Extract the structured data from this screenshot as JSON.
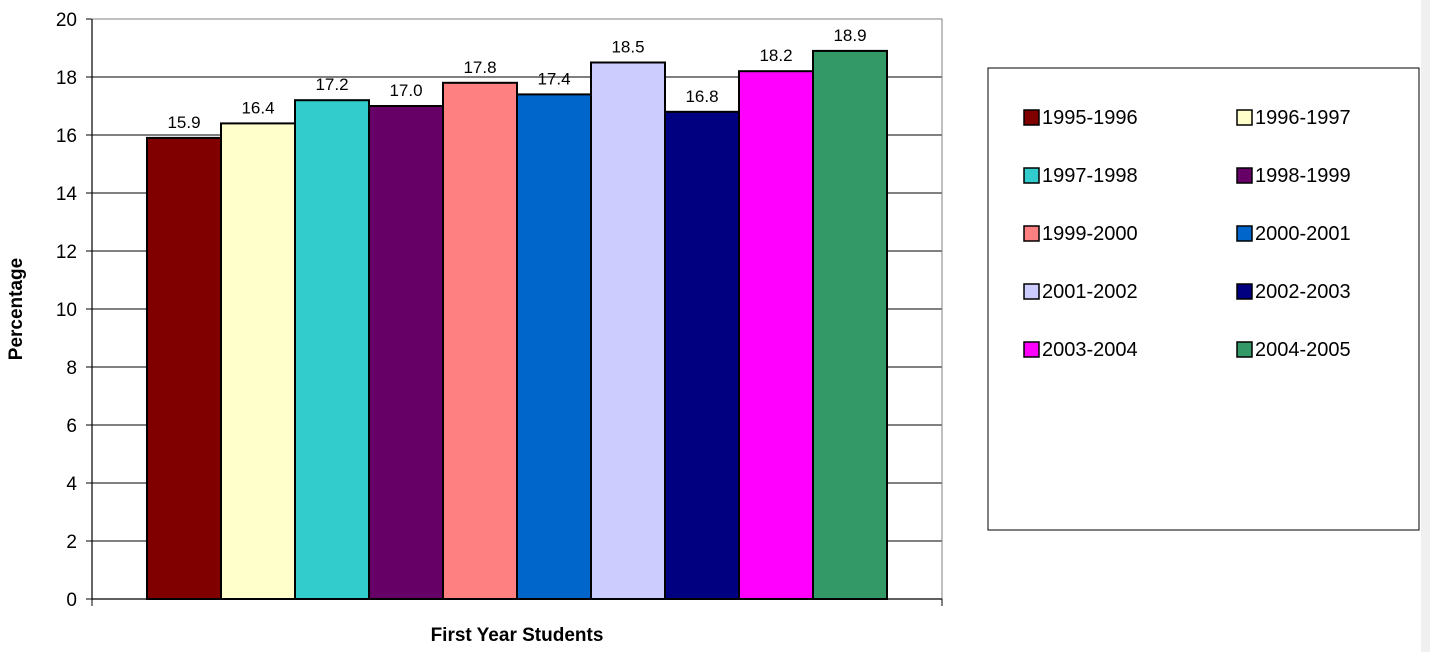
{
  "chart_data": {
    "type": "bar",
    "title": "",
    "xlabel": "First Year Students",
    "ylabel": "Percentage",
    "ylim": [
      0,
      20
    ],
    "yticks": [
      "0",
      "2",
      "4",
      "6",
      "8",
      "10",
      "12",
      "14",
      "16",
      "18",
      "20"
    ],
    "gridlines": true,
    "legend_position": "right",
    "series": [
      {
        "name": "1995-1996",
        "value": 15.9,
        "label": "15.9",
        "color": "#800000"
      },
      {
        "name": "1996-1997",
        "value": 16.4,
        "label": "16.4",
        "color": "#FFFFCC"
      },
      {
        "name": "1997-1998",
        "value": 17.2,
        "label": "17.2",
        "color": "#33CCCC"
      },
      {
        "name": "1998-1999",
        "value": 17.0,
        "label": "17.0",
        "color": "#660066"
      },
      {
        "name": "1999-2000",
        "value": 17.8,
        "label": "17.8",
        "color": "#FF8080"
      },
      {
        "name": "2000-2001",
        "value": 17.4,
        "label": "17.4",
        "color": "#0066CC"
      },
      {
        "name": "2001-2002",
        "value": 18.5,
        "label": "18.5",
        "color": "#CCCCFF"
      },
      {
        "name": "2002-2003",
        "value": 16.8,
        "label": "16.8",
        "color": "#000080"
      },
      {
        "name": "2003-2004",
        "value": 18.2,
        "label": "18.2",
        "color": "#FF00FF"
      },
      {
        "name": "2004-2005",
        "value": 18.9,
        "label": "18.9",
        "color": "#339966"
      }
    ]
  }
}
